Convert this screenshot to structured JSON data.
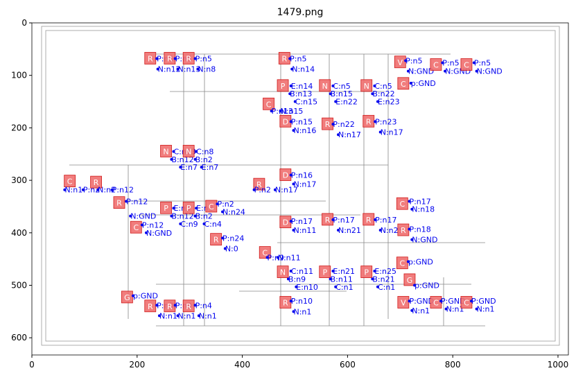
{
  "title": "1479.png",
  "x_axis": {
    "ticks": [
      0,
      200,
      400,
      600,
      800,
      1000
    ]
  },
  "y_axis": {
    "ticks": [
      0,
      100,
      200,
      300,
      400,
      500,
      600
    ]
  },
  "components": [
    {
      "symbol": "R",
      "pins": [
        "P:n5",
        "N:n12"
      ]
    },
    {
      "symbol": "R",
      "pins": [
        "P:n5",
        "N:n13"
      ]
    },
    {
      "symbol": "R",
      "pins": [
        "P:n5",
        "N:n8"
      ]
    },
    {
      "symbol": "R",
      "pins": [
        "P:n5",
        "N:n14"
      ]
    },
    {
      "symbol": "V",
      "pins": [
        "P:n5",
        "N:GND"
      ]
    },
    {
      "symbol": "C",
      "pins": [
        "P:n5",
        "N:GND"
      ]
    },
    {
      "symbol": "C",
      "pins": [
        "P:n5",
        "N:GND"
      ]
    },
    {
      "symbol": "C",
      "pins": [
        "p:GND"
      ]
    },
    {
      "symbol": "P",
      "pins": [
        "E:n14",
        "B:n13",
        "C:n15"
      ]
    },
    {
      "symbol": "N",
      "pins": [
        "C:n5",
        "B:n15",
        "E:n22"
      ]
    },
    {
      "symbol": "N",
      "pins": [
        "C:n5",
        "B:n22",
        "E:n23"
      ]
    },
    {
      "symbol": "C",
      "pins": [
        "P:n13",
        "N:n15"
      ]
    },
    {
      "symbol": "D",
      "pins": [
        "P:n15",
        "N:n16"
      ]
    },
    {
      "symbol": "R",
      "pins": [
        "P:n22",
        "N:n17"
      ]
    },
    {
      "symbol": "R",
      "pins": [
        "P:n23",
        "N:n17"
      ]
    },
    {
      "symbol": "N",
      "pins": [
        "C:n13",
        "B:n12",
        "E:n7"
      ]
    },
    {
      "symbol": "N",
      "pins": [
        "C:n8",
        "B:n2",
        "E:n7"
      ]
    },
    {
      "symbol": "D",
      "pins": [
        "P:n16",
        "N:n17"
      ]
    },
    {
      "symbol": "C",
      "pins": [
        "N:n1",
        "P:n2"
      ]
    },
    {
      "symbol": "R",
      "pins": [
        "N:n2",
        "P:n12"
      ]
    },
    {
      "symbol": "R",
      "pins": [
        "P:n2",
        "N:n17"
      ]
    },
    {
      "symbol": "R",
      "pins": [
        "P:n12",
        "N:GND"
      ]
    },
    {
      "symbol": "C",
      "pins": [
        "P:n17",
        "N:n18"
      ]
    },
    {
      "symbol": "C",
      "pins": [
        "P:n12",
        "N:GND"
      ]
    },
    {
      "symbol": "P",
      "pins": [
        "E:n3",
        "B:n12",
        "C:n9"
      ]
    },
    {
      "symbol": "P",
      "pins": [
        "E:n3",
        "B:n2",
        "C:n4"
      ]
    },
    {
      "symbol": "C",
      "pins": [
        "P:n2",
        "N:n24"
      ]
    },
    {
      "symbol": "D",
      "pins": [
        "P:n17",
        "N:n11"
      ]
    },
    {
      "symbol": "R",
      "pins": [
        "P:n17",
        "N:n21"
      ]
    },
    {
      "symbol": "R",
      "pins": [
        "P:n17",
        "N:n25"
      ]
    },
    {
      "symbol": "R",
      "pins": [
        "P:n18",
        "N:GND"
      ]
    },
    {
      "symbol": "R",
      "pins": [
        "P:n24",
        "N:0"
      ]
    },
    {
      "symbol": "C",
      "pins": [
        "P:n9",
        "N:n11"
      ]
    },
    {
      "symbol": "C",
      "pins": [
        "p:GND"
      ]
    },
    {
      "symbol": "N",
      "pins": [
        "C:n11",
        "B:n9",
        "E:n10"
      ]
    },
    {
      "symbol": "P",
      "pins": [
        "E:n21",
        "B:n11",
        "C:n1"
      ]
    },
    {
      "symbol": "P",
      "pins": [
        "E:n25",
        "B:n21",
        "C:n1"
      ]
    },
    {
      "symbol": "G",
      "pins": [
        "p:GND"
      ]
    },
    {
      "symbol": "G",
      "pins": [
        "p:GND"
      ]
    },
    {
      "symbol": "R",
      "pins": [
        "P:n10",
        "N:n1"
      ]
    },
    {
      "symbol": "V",
      "pins": [
        "P:GND",
        "N:n1"
      ]
    },
    {
      "symbol": "C",
      "pins": [
        "P:GND",
        "N:n1"
      ]
    },
    {
      "symbol": "C",
      "pins": [
        "P:GND",
        "N:n1"
      ]
    },
    {
      "symbol": "R",
      "pins": [
        "P:n3",
        "N:n1"
      ]
    },
    {
      "symbol": "R",
      "pins": [
        "P:n9",
        "N:n1"
      ]
    },
    {
      "symbol": "R",
      "pins": [
        "P:n4",
        "N:n1"
      ]
    }
  ]
}
